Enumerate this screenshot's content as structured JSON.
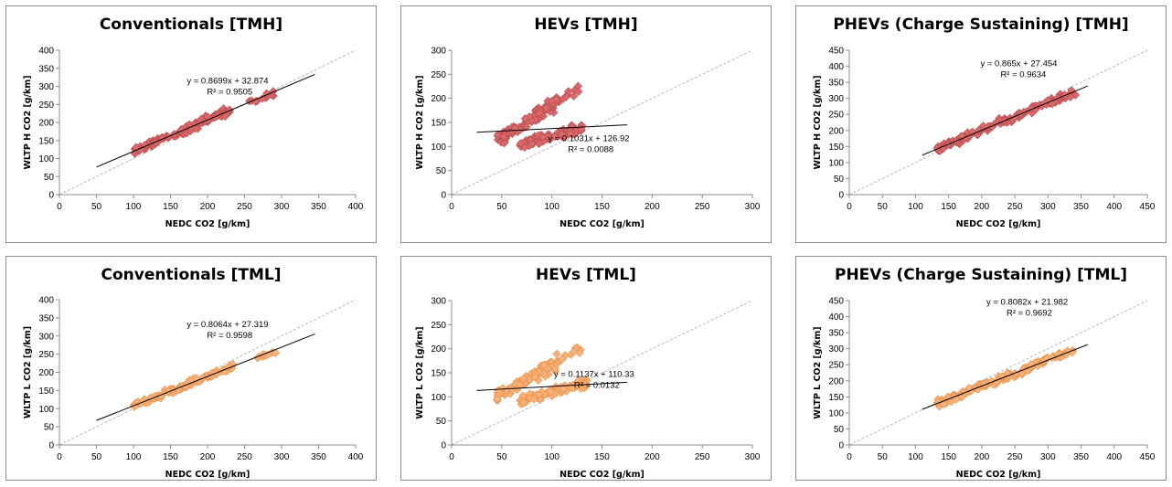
{
  "chart_data": [
    {
      "type": "scatter",
      "title": "Conventionals [TMH]",
      "xlabel": "NEDC CO2 [g/km]",
      "ylabel": "WLTP H CO2 [g/km]",
      "xlim": [
        0,
        400
      ],
      "ylim": [
        0,
        400
      ],
      "xticks": [
        0,
        50,
        100,
        150,
        200,
        250,
        300,
        350,
        400
      ],
      "yticks": [
        0,
        50,
        100,
        150,
        200,
        250,
        300,
        350,
        400
      ],
      "grid": false,
      "marker_color": "#d9696b",
      "marker_edge": "#b84a4c",
      "reference_line": "y = x",
      "trendline": {
        "slope": 0.8699,
        "intercept": 32.874,
        "x_range": [
          50,
          345
        ],
        "equation": "y = 0.8699x + 32.874",
        "r2": "R² = 0.9505"
      },
      "clusters": [
        {
          "x_range": [
            100,
            235
          ],
          "slope": 0.8699,
          "intercept": 32.874,
          "spread": 7,
          "count": 110
        },
        {
          "x_range": [
            250,
            295
          ],
          "slope": 0.8699,
          "intercept": 28,
          "spread": 6,
          "count": 12
        }
      ]
    },
    {
      "type": "scatter",
      "title": "HEVs [TMH]",
      "xlabel": "NEDC CO2 [g/km]",
      "ylabel": "WLTP H CO2 [g/km]",
      "xlim": [
        0,
        300
      ],
      "ylim": [
        0,
        300
      ],
      "xticks": [
        0,
        50,
        100,
        150,
        200,
        250,
        300
      ],
      "yticks": [
        0,
        50,
        100,
        150,
        200,
        250,
        300
      ],
      "grid": false,
      "marker_color": "#d9696b",
      "marker_edge": "#b84a4c",
      "reference_line": "y = x",
      "trendline": {
        "slope": 0.1031,
        "intercept": 126.92,
        "x_range": [
          25,
          175
        ],
        "equation": "y = 0.1031x + 126.92",
        "r2": "R² = 0.0088"
      },
      "clusters": [
        {
          "x_range": [
            45,
            105
          ],
          "slope": 1.3,
          "intercept": 55,
          "spread": 10,
          "count": 90
        },
        {
          "x_range": [
            68,
            130
          ],
          "slope": 0.6,
          "intercept": 62,
          "spread": 7,
          "count": 80
        },
        {
          "x_range": [
            100,
            130
          ],
          "slope": 1.2,
          "intercept": 70,
          "spread": 8,
          "count": 14
        }
      ]
    },
    {
      "type": "scatter",
      "title": "PHEVs (Charge Sustaining) [TMH]",
      "xlabel": "NEDC CO2 [g/km]",
      "ylabel": "WLTP H CO2 [g/km]",
      "xlim": [
        0,
        450
      ],
      "ylim": [
        0,
        450
      ],
      "xticks": [
        0,
        50,
        100,
        150,
        200,
        250,
        300,
        350,
        400,
        450
      ],
      "yticks": [
        0,
        50,
        100,
        150,
        200,
        250,
        300,
        350,
        400,
        450
      ],
      "grid": false,
      "marker_color": "#d9696b",
      "marker_edge": "#b84a4c",
      "reference_line": "y = x",
      "trendline": {
        "slope": 0.865,
        "intercept": 27.454,
        "x_range": [
          110,
          360
        ],
        "equation": "y = 0.865x + 27.454",
        "r2": "R² = 0.9634"
      },
      "clusters": [
        {
          "x_range": [
            130,
            345
          ],
          "slope": 0.865,
          "intercept": 27.454,
          "spread": 8,
          "count": 130
        }
      ]
    },
    {
      "type": "scatter",
      "title": "Conventionals [TML]",
      "xlabel": "NEDC CO2 [g/km]",
      "ylabel": "WLTP L CO2 [g/km]",
      "xlim": [
        0,
        400
      ],
      "ylim": [
        0,
        400
      ],
      "xticks": [
        0,
        50,
        100,
        150,
        200,
        250,
        300,
        350,
        400
      ],
      "yticks": [
        0,
        50,
        100,
        150,
        200,
        250,
        300,
        350,
        400
      ],
      "grid": false,
      "marker_color": "#f7b27a",
      "marker_edge": "#e8914a",
      "reference_line": "y = x",
      "trendline": {
        "slope": 0.8064,
        "intercept": 27.319,
        "x_range": [
          50,
          345
        ],
        "equation": "y = 0.8064x + 27.319",
        "r2": "R² = 0.9598"
      },
      "clusters": [
        {
          "x_range": [
            100,
            235
          ],
          "slope": 0.8064,
          "intercept": 27.319,
          "spread": 6,
          "count": 110
        },
        {
          "x_range": [
            265,
            295
          ],
          "slope": 0.8064,
          "intercept": 22,
          "spread": 5,
          "count": 10
        }
      ]
    },
    {
      "type": "scatter",
      "title": "HEVs [TML]",
      "xlabel": "NEDC CO2 [g/km]",
      "ylabel": "WLTP L CO2 [g/km]",
      "xlim": [
        0,
        300
      ],
      "ylim": [
        0,
        300
      ],
      "xticks": [
        0,
        50,
        100,
        150,
        200,
        250,
        300
      ],
      "yticks": [
        0,
        50,
        100,
        150,
        200,
        250,
        300
      ],
      "grid": false,
      "marker_color": "#f7b27a",
      "marker_edge": "#e8914a",
      "reference_line": "y = x",
      "trendline": {
        "slope": 0.1137,
        "intercept": 110.33,
        "x_range": [
          25,
          175
        ],
        "equation": "y = 0.1137x + 110.33",
        "r2": "R² = 0.0132"
      },
      "clusters": [
        {
          "x_range": [
            45,
            105
          ],
          "slope": 1.15,
          "intercept": 50,
          "spread": 9,
          "count": 90
        },
        {
          "x_range": [
            68,
            135
          ],
          "slope": 0.55,
          "intercept": 55,
          "spread": 7,
          "count": 80
        },
        {
          "x_range": [
            100,
            130
          ],
          "slope": 1.1,
          "intercept": 60,
          "spread": 8,
          "count": 14
        }
      ]
    },
    {
      "type": "scatter",
      "title": "PHEVs (Charge Sustaining) [TML]",
      "xlabel": "NEDC CO2 [g/km]",
      "ylabel": "WLTP L CO2 [g/km]",
      "xlim": [
        0,
        450
      ],
      "ylim": [
        0,
        450
      ],
      "xticks": [
        0,
        50,
        100,
        150,
        200,
        250,
        300,
        350,
        400,
        450
      ],
      "yticks": [
        0,
        50,
        100,
        150,
        200,
        250,
        300,
        350,
        400,
        450
      ],
      "grid": false,
      "marker_color": "#f7b27a",
      "marker_edge": "#e8914a",
      "reference_line": "y = x",
      "trendline": {
        "slope": 0.8082,
        "intercept": 21.982,
        "x_range": [
          110,
          360
        ],
        "equation": "y = 0.8082x + 21.982",
        "r2": "R² = 0.9692"
      },
      "clusters": [
        {
          "x_range": [
            130,
            345
          ],
          "slope": 0.8082,
          "intercept": 21.982,
          "spread": 7,
          "count": 130
        }
      ]
    }
  ]
}
